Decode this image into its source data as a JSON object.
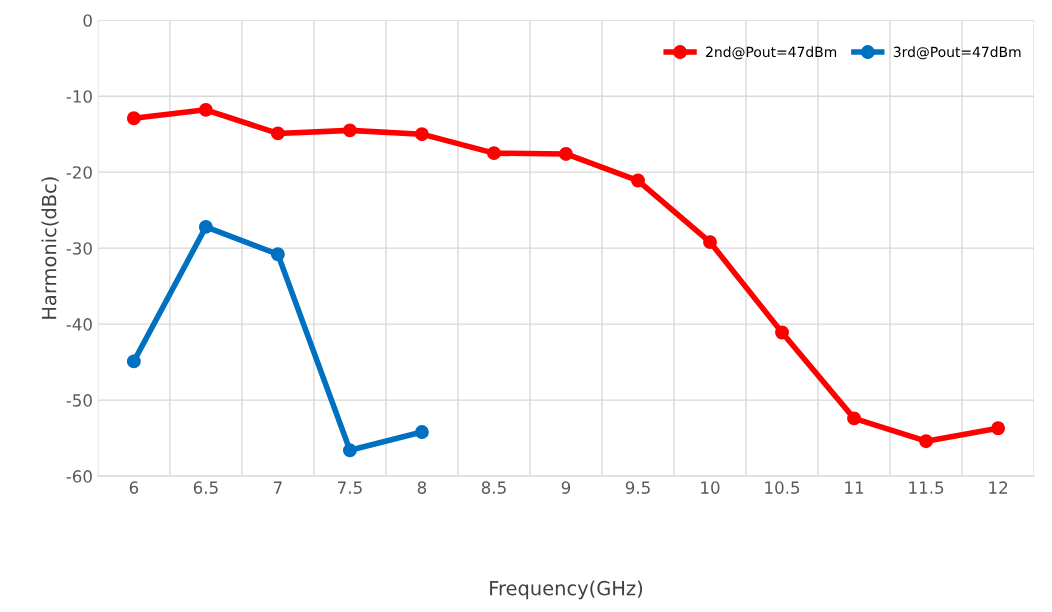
{
  "chart_data": {
    "type": "line",
    "xlabel": "Frequency(GHz)",
    "ylabel": "Harmonic(dBc)",
    "categories": [
      "6",
      "6.5",
      "7",
      "7.5",
      "8",
      "8.5",
      "9",
      "9.5",
      "10",
      "10.5",
      "11",
      "11.5",
      "12"
    ],
    "series": [
      {
        "name": "2nd@Pout=47dBm",
        "color": "#ff0000",
        "values": [
          -12.9,
          -11.8,
          -14.9,
          -14.5,
          -15,
          -17.5,
          -17.6,
          -21.1,
          -29.2,
          -41.1,
          -52.4,
          -55.4,
          -53.7
        ]
      },
      {
        "name": "3rd@Pout=47dBm",
        "color": "#0070c0",
        "values": [
          -44.9,
          -27.2,
          -30.8,
          -56.6,
          -54.2,
          null,
          null,
          null,
          null,
          null,
          null,
          null,
          null
        ]
      }
    ],
    "ylim": [
      -60,
      0
    ],
    "yticks": [
      -60,
      -50,
      -40,
      -30,
      -20,
      -10,
      0
    ],
    "grid": true,
    "legend": "top right",
    "marker": "circle",
    "line_style": "solid"
  }
}
